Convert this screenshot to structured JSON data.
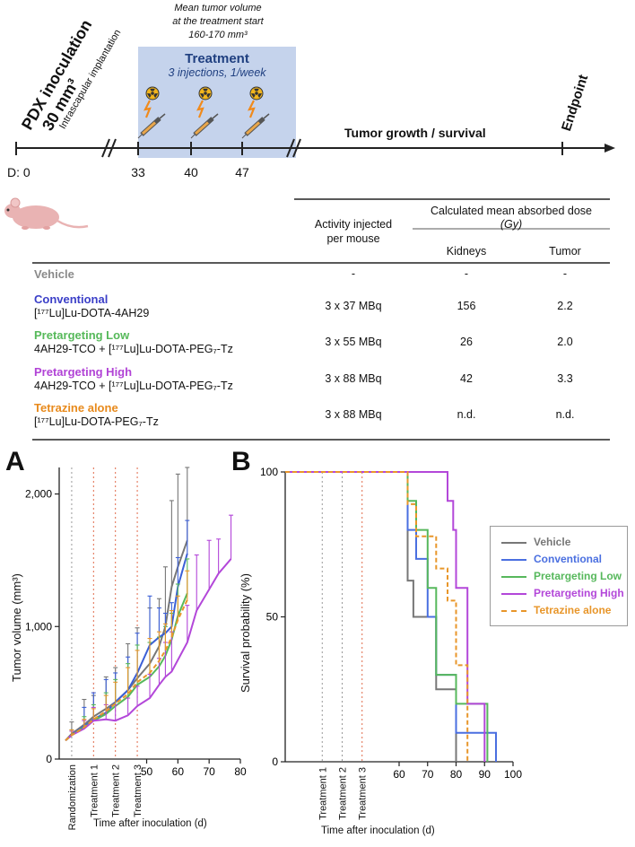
{
  "timeline": {
    "pdx_title": "PDX inoculation",
    "pdx_volume": "30 mm³",
    "pdx_note": "Intrascapular implantation",
    "mean_volume_note": [
      "Mean tumor volume",
      "at the treatment start",
      "160-170 mm³"
    ],
    "treatment_title": "Treatment",
    "treatment_sub": "3 injections, 1/week",
    "growth_label": "Tumor growth / survival",
    "endpoint_label": "Endpoint",
    "day_prefix": "D: 0",
    "days": [
      "33",
      "40",
      "47"
    ]
  },
  "table": {
    "col_activity": [
      "Activity injected",
      "per mouse"
    ],
    "col_dose_header": "Calculated mean absorbed dose",
    "col_dose_unit": "(Gy)",
    "col_kidneys": "Kidneys",
    "col_tumor": "Tumor",
    "rows": [
      {
        "name": "Vehicle",
        "sub": "",
        "activity": "-",
        "kidneys": "-",
        "tumor": "-",
        "color": "#8a8a8a"
      },
      {
        "name": "Conventional",
        "sub": "[¹⁷⁷Lu]Lu-DOTA-4AH29",
        "activity": "3 x 37 MBq",
        "kidneys": "156",
        "tumor": "2.2",
        "color": "#3b3fc8"
      },
      {
        "name": "Pretargeting Low",
        "sub": "4AH29-TCO + [¹⁷⁷Lu]Lu-DOTA-PEG₇-Tz",
        "activity": "3 x 55 MBq",
        "kidneys": "26",
        "tumor": "2.0",
        "color": "#56b95a"
      },
      {
        "name": "Pretargeting High",
        "sub": "4AH29-TCO + [¹⁷⁷Lu]Lu-DOTA-PEG₇-Tz",
        "activity": "3 x 88 MBq",
        "kidneys": "42",
        "tumor": "3.3",
        "color": "#b143d6"
      },
      {
        "name": "Tetrazine alone",
        "sub": "[¹⁷⁷Lu]Lu-DOTA-PEG₇-Tz",
        "activity": "3 x 88 MBq",
        "kidneys": "n.d.",
        "tumor": "n.d.",
        "color": "#e88a1c"
      }
    ]
  },
  "panel_labels": {
    "a": "A",
    "b": "B"
  },
  "chart_data": [
    {
      "type": "line",
      "ylabel": "Tumor volume (mm³)",
      "xlabel": "Time after inoculation (d)",
      "ylim": [
        0,
        2200
      ],
      "yticks": [
        0,
        1000,
        2000
      ],
      "ytick_labels": [
        "0",
        "1,000",
        "2,000"
      ],
      "xticks": [
        50,
        60,
        70,
        80
      ],
      "xtick_labels": [
        "50",
        "60",
        "70",
        "80"
      ],
      "vlines": [
        {
          "x": 26,
          "label": "Randomization",
          "color": "#999999"
        },
        {
          "x": 33,
          "label": "Treatment 1",
          "color": "#e06a4a"
        },
        {
          "x": 40,
          "label": "Treatment 2",
          "color": "#e06a4a"
        },
        {
          "x": 47,
          "label": "Treatment 3",
          "color": "#e06a4a"
        }
      ],
      "series": [
        {
          "name": "Vehicle",
          "color": "#777777",
          "x": [
            24,
            26,
            30,
            33,
            37,
            40,
            44,
            47,
            51,
            54,
            56,
            58,
            60,
            63
          ],
          "y": [
            140,
            190,
            260,
            320,
            380,
            430,
            520,
            610,
            720,
            850,
            1000,
            1300,
            1450,
            1650
          ],
          "err": [
            0,
            90,
            190,
            160,
            240,
            260,
            350,
            380,
            420,
            360,
            450,
            650,
            700,
            550
          ]
        },
        {
          "name": "Conventional",
          "color": "#3b5fd6",
          "x": [
            24,
            26,
            30,
            33,
            37,
            40,
            44,
            47,
            51,
            54,
            56,
            58,
            60,
            63
          ],
          "y": [
            140,
            180,
            250,
            300,
            350,
            430,
            520,
            650,
            860,
            920,
            950,
            1000,
            1300,
            1550
          ],
          "err": [
            0,
            40,
            140,
            200,
            250,
            220,
            250,
            300,
            370,
            220,
            150,
            180,
            220,
            250
          ]
        },
        {
          "name": "Pretargeting Low",
          "color": "#57b85c",
          "x": [
            24,
            26,
            30,
            33,
            37,
            40,
            44,
            47,
            51,
            54,
            56,
            58,
            60,
            63
          ],
          "y": [
            140,
            180,
            240,
            290,
            340,
            400,
            470,
            560,
            620,
            700,
            780,
            900,
            1080,
            1250
          ],
          "err": [
            0,
            40,
            80,
            120,
            160,
            200,
            250,
            300,
            260,
            220,
            220,
            200,
            240,
            260
          ]
        },
        {
          "name": "Pretargeting High",
          "color": "#b347d9",
          "x": [
            24,
            26,
            30,
            33,
            37,
            40,
            44,
            47,
            51,
            54,
            56,
            58,
            63,
            66,
            70,
            73,
            77
          ],
          "y": [
            140,
            180,
            230,
            290,
            300,
            290,
            330,
            400,
            460,
            560,
            620,
            660,
            880,
            1120,
            1280,
            1400,
            1510
          ],
          "err": [
            0,
            30,
            60,
            100,
            110,
            120,
            130,
            150,
            180,
            200,
            260,
            300,
            280,
            420,
            370,
            260,
            330
          ]
        },
        {
          "name": "Tetrazine alone",
          "color": "#e8962a",
          "dashed": true,
          "x": [
            24,
            26,
            30,
            33,
            37,
            40,
            44,
            47,
            51,
            54,
            56,
            58,
            60,
            63
          ],
          "y": [
            140,
            180,
            240,
            300,
            360,
            420,
            490,
            580,
            650,
            740,
            820,
            920,
            1050,
            1200
          ],
          "err": [
            0,
            40,
            60,
            80,
            120,
            160,
            200,
            240,
            260,
            220,
            200,
            200,
            180,
            220
          ]
        }
      ]
    },
    {
      "type": "line",
      "subtype": "step",
      "ylabel": "Survival probability (%)",
      "xlabel": "Time after inoculation (d)",
      "ylim": [
        0,
        100
      ],
      "yticks": [
        0,
        50,
        100
      ],
      "ytick_labels": [
        "0",
        "50",
        "100"
      ],
      "xlim": [
        20,
        100
      ],
      "xticks": [
        60,
        70,
        80,
        90,
        100
      ],
      "xtick_labels": [
        "60",
        "70",
        "80",
        "90",
        "100"
      ],
      "vlines": [
        {
          "x": 33,
          "label": "Treatment 1",
          "color": "#999999"
        },
        {
          "x": 40,
          "label": "Treatment 2",
          "color": "#999999"
        },
        {
          "x": 47,
          "label": "Treatment 3",
          "color": "#e06a4a"
        }
      ],
      "legend_position": "right",
      "series": [
        {
          "name": "Vehicle",
          "color": "#777777",
          "x": [
            20,
            63,
            65,
            67,
            73,
            80
          ],
          "y": [
            100,
            62.5,
            50,
            50,
            25,
            0
          ]
        },
        {
          "name": "Conventional",
          "color": "#4a6fe0",
          "x": [
            20,
            63,
            66,
            70,
            73,
            80,
            94
          ],
          "y": [
            100,
            80,
            70,
            50,
            30,
            10,
            0
          ]
        },
        {
          "name": "Pretargeting Low",
          "color": "#57b85c",
          "x": [
            20,
            63,
            66,
            70,
            73,
            80,
            91
          ],
          "y": [
            100,
            90,
            80,
            60,
            30,
            20,
            0
          ]
        },
        {
          "name": "Pretargeting High",
          "color": "#b347d9",
          "x": [
            20,
            77,
            79,
            80,
            84,
            90
          ],
          "y": [
            100,
            90,
            80,
            60,
            20,
            0
          ]
        },
        {
          "name": "Tetrazine alone",
          "color": "#e8962a",
          "dashed": true,
          "x": [
            20,
            63,
            66,
            69,
            73,
            77,
            80,
            84
          ],
          "y": [
            100,
            88.9,
            77.8,
            77.8,
            66.7,
            55.6,
            33.3,
            0
          ]
        }
      ]
    }
  ]
}
